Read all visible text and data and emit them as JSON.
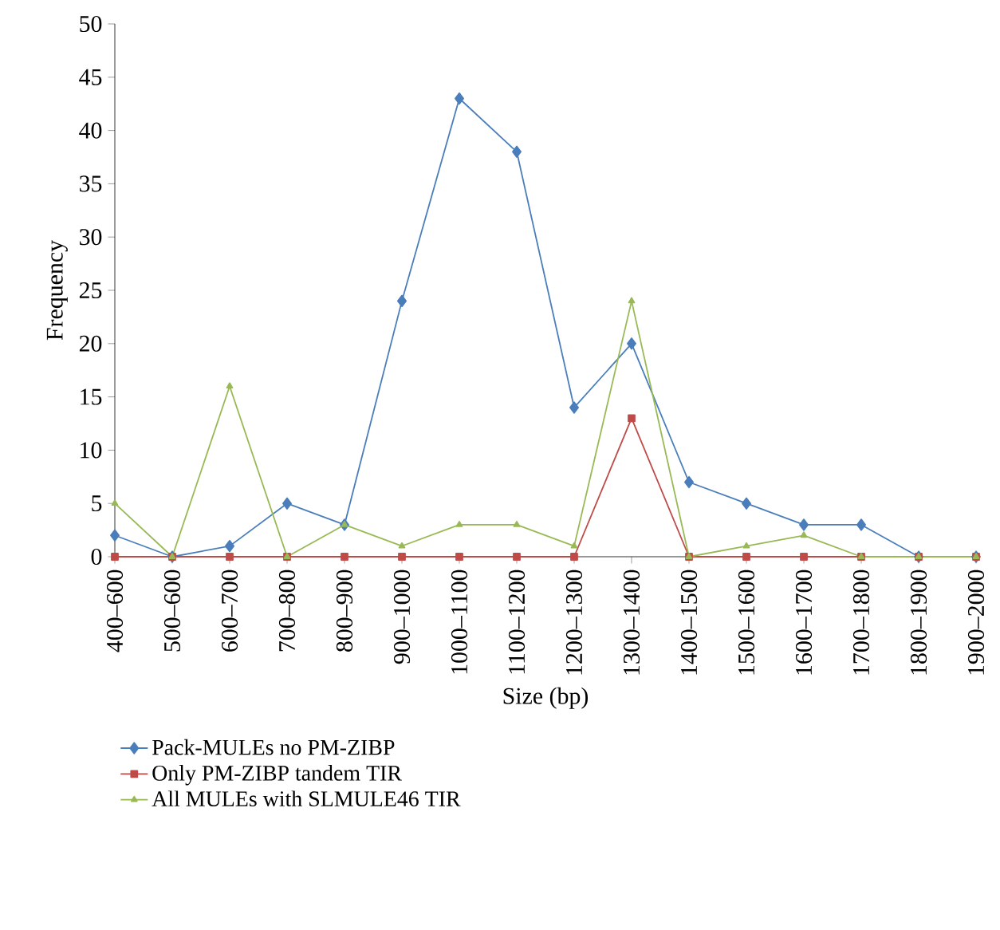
{
  "chart_data": {
    "type": "line",
    "xlabel": "Size (bp)",
    "ylabel": "Frequency",
    "categories": [
      "400–600",
      "500–600",
      "600–700",
      "700–800",
      "800–900",
      "900–1000",
      "1000–1100",
      "1100–1200",
      "1200–1300",
      "1300–1400",
      "1400–1500",
      "1500–1600",
      "1600–1700",
      "1700–1800",
      "1800–1900",
      "1900–2000"
    ],
    "series": [
      {
        "name": "Pack-MULEs no PM-ZIBP",
        "color": "#4a7ebb",
        "marker": "diamond",
        "values": [
          2,
          0,
          1,
          5,
          3,
          24,
          43,
          38,
          14,
          20,
          7,
          5,
          3,
          3,
          0,
          0
        ]
      },
      {
        "name": "Only PM-ZIBP tandem TIR",
        "color": "#be4b48",
        "marker": "square",
        "values": [
          0,
          0,
          0,
          0,
          0,
          0,
          0,
          0,
          0,
          13,
          0,
          0,
          0,
          0,
          0,
          0
        ]
      },
      {
        "name": "All MULEs with SLMULE46 TIR",
        "color": "#98b954",
        "marker": "triangle",
        "values": [
          5,
          0,
          16,
          0,
          3,
          1,
          3,
          3,
          1,
          24,
          0,
          1,
          2,
          0,
          0,
          0
        ]
      }
    ],
    "ylim": [
      0,
      50
    ],
    "yticks": [
      0,
      5,
      10,
      15,
      20,
      25,
      30,
      35,
      40,
      45,
      50
    ],
    "grid": false,
    "legend": "bottom"
  }
}
